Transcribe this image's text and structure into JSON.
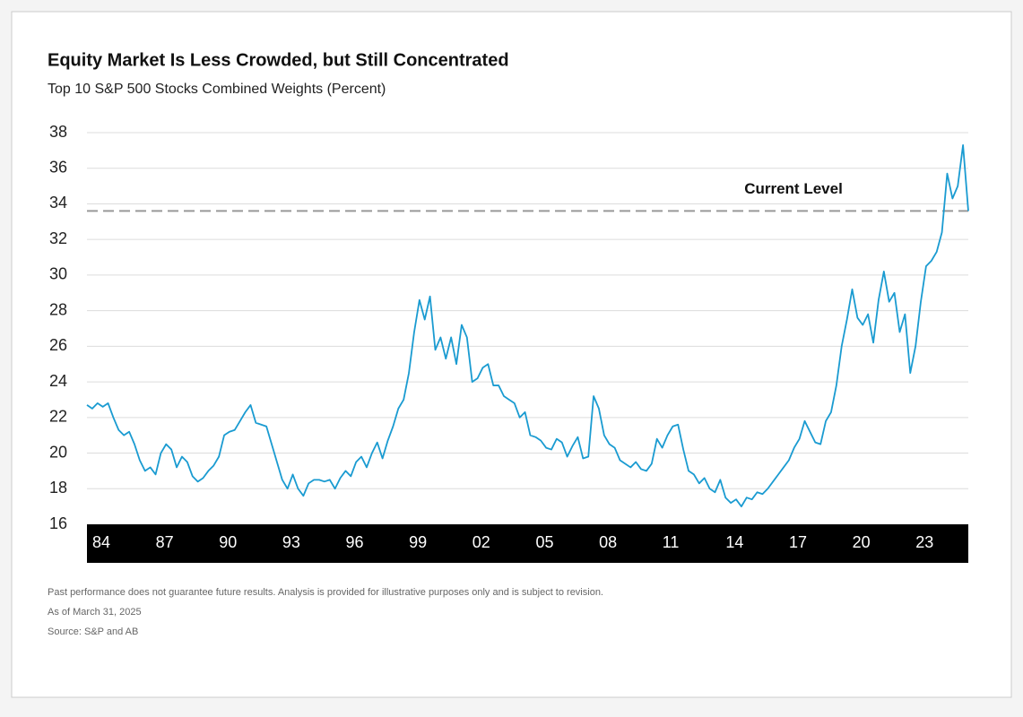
{
  "chart_data": {
    "type": "line",
    "title": "Equity Market Is Less Crowded, but Still Concentrated",
    "subtitle": "Top 10 S&P 500 Stocks Combined Weights (Percent)",
    "categories": [
      "84",
      null,
      null,
      null,
      null,
      null,
      null,
      null,
      null,
      null,
      null,
      null,
      "87",
      null,
      null,
      null,
      null,
      null,
      null,
      null,
      null,
      null,
      null,
      null,
      "90",
      null,
      null,
      null,
      null,
      null,
      null,
      null,
      null,
      null,
      null,
      null,
      "93",
      null,
      null,
      null,
      null,
      null,
      null,
      null,
      null,
      null,
      null,
      null,
      "96",
      null,
      null,
      null,
      null,
      null,
      null,
      null,
      null,
      null,
      null,
      null,
      "99",
      null,
      null,
      null,
      null,
      null,
      null,
      null,
      null,
      null,
      null,
      null,
      "02",
      null,
      null,
      null,
      null,
      null,
      null,
      null,
      null,
      null,
      null,
      null,
      "05",
      null,
      null,
      null,
      null,
      null,
      null,
      null,
      null,
      null,
      null,
      null,
      "08",
      null,
      null,
      null,
      null,
      null,
      null,
      null,
      null,
      null,
      null,
      null,
      "11",
      null,
      null,
      null,
      null,
      null,
      null,
      null,
      null,
      null,
      null,
      null,
      "14",
      null,
      null,
      null,
      null,
      null,
      null,
      null,
      null,
      null,
      null,
      null,
      "17",
      null,
      null,
      null,
      null,
      null,
      null,
      null,
      null,
      null,
      null,
      null,
      "20",
      null,
      null,
      null,
      null,
      null,
      null,
      null,
      null,
      null,
      null,
      null,
      "23",
      null,
      null,
      null,
      null,
      null,
      null,
      null,
      null,
      null,
      null,
      null
    ],
    "series": [
      {
        "color": "#1a9bd1",
        "values": [
          22.7,
          22.5,
          22.8,
          22.6,
          22.8,
          22.0,
          21.3,
          21.0,
          21.2,
          20.5,
          19.6,
          19.0,
          19.2,
          18.8,
          20.0,
          20.5,
          20.2,
          19.2,
          19.8,
          19.5,
          18.7,
          18.4,
          18.6,
          19.0,
          19.3,
          19.8,
          21.0,
          21.2,
          21.3,
          21.8,
          22.3,
          22.7,
          21.7,
          21.6,
          21.5,
          20.5,
          19.5,
          18.5,
          18.0,
          18.8,
          18.0,
          17.6,
          18.3,
          18.5,
          18.5,
          18.4,
          18.5,
          18.0,
          18.6,
          19.0,
          18.7,
          19.5,
          19.8,
          19.2,
          20.0,
          20.6,
          19.7,
          20.7,
          21.5,
          22.5,
          23.0,
          24.5,
          26.8,
          28.6,
          27.5,
          28.8,
          25.8,
          26.5,
          25.3,
          26.5,
          25.0,
          27.2,
          26.5,
          24.0,
          24.2,
          24.8,
          25.0,
          23.8,
          23.8,
          23.2,
          23.0,
          22.8,
          22.0,
          22.3,
          21.0,
          20.9,
          20.7,
          20.3,
          20.2,
          20.8,
          20.6,
          19.8,
          20.4,
          20.9,
          19.7,
          19.8,
          23.2,
          22.5,
          21.0,
          20.5,
          20.3,
          19.6,
          19.4,
          19.2,
          19.5,
          19.1,
          19.0,
          19.4,
          20.8,
          20.3,
          21.0,
          21.5,
          21.6,
          20.2,
          19.0,
          18.8,
          18.3,
          18.6,
          18.0,
          17.8,
          18.5,
          17.5,
          17.2,
          17.4,
          17.0,
          17.5,
          17.4,
          17.8,
          17.7,
          18.0,
          18.4,
          18.8,
          19.2,
          19.6,
          20.3,
          20.8,
          21.8,
          21.2,
          20.6,
          20.5,
          21.8,
          22.3,
          23.8,
          26.0,
          27.5,
          29.2,
          27.6,
          27.2,
          27.8,
          26.2,
          28.6,
          30.2,
          28.5,
          29.0,
          26.8,
          27.8,
          24.5,
          26.0,
          28.5,
          30.5,
          30.8,
          31.3,
          32.4,
          35.7,
          34.3,
          35.0,
          37.3,
          33.6
        ]
      }
    ],
    "reference_line": {
      "label": "Current Level",
      "value": 33.6
    },
    "ylim": [
      16,
      38
    ],
    "yticks": [
      16,
      18,
      20,
      22,
      24,
      26,
      28,
      30,
      32,
      34,
      36,
      38
    ],
    "grid": true,
    "footnotes": [
      "Past performance does not guarantee future results. Analysis is provided for illustrative purposes only and is subject to revision.",
      "As of March 31, 2025",
      "Source: S&P and AB"
    ]
  }
}
